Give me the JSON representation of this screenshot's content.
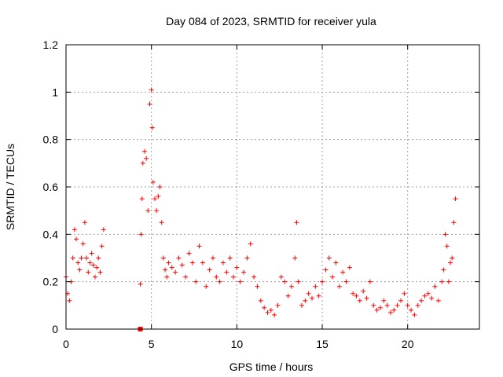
{
  "chart_data": {
    "type": "scatter",
    "title": "Day 084 of 2023, SRMTID for receiver yula",
    "xlabel": "GPS time / hours",
    "ylabel": "SRMTID / TECUs",
    "xlim": [
      0,
      24.2
    ],
    "ylim": [
      0,
      1.2
    ],
    "xticks": [
      0,
      5,
      10,
      15,
      20
    ],
    "xtick_labels": [
      "0",
      "5",
      "10",
      "15",
      "20"
    ],
    "yticks": [
      0,
      0.2,
      0.4,
      0.6,
      0.8,
      1.0,
      1.2
    ],
    "ytick_labels": [
      "0",
      "0.2",
      "0.4",
      "0.6",
      "0.8",
      "1",
      "1.2"
    ],
    "grid": true,
    "marker": "+",
    "color": "#ff0000",
    "series": [
      {
        "name": "SRMTID",
        "x": [
          0.0,
          0.1,
          0.2,
          0.3,
          0.4,
          0.5,
          0.6,
          0.7,
          0.8,
          0.9,
          1.0,
          1.1,
          1.2,
          1.3,
          1.4,
          1.5,
          1.6,
          1.7,
          1.8,
          1.9,
          2.0,
          2.1,
          2.2,
          4.35,
          4.4,
          4.45,
          4.5,
          4.6,
          4.7,
          4.8,
          4.9,
          5.0,
          5.05,
          5.1,
          5.2,
          5.3,
          5.4,
          5.5,
          5.6,
          5.7,
          5.8,
          5.9,
          6.0,
          6.2,
          6.4,
          6.6,
          6.8,
          7.0,
          7.2,
          7.4,
          7.6,
          7.8,
          8.0,
          8.2,
          8.4,
          8.6,
          8.8,
          9.0,
          9.2,
          9.4,
          9.6,
          9.8,
          10.0,
          10.2,
          10.4,
          10.6,
          10.8,
          11.0,
          11.2,
          11.4,
          11.6,
          11.8,
          12.0,
          12.2,
          12.4,
          12.6,
          12.8,
          13.0,
          13.2,
          13.4,
          13.5,
          13.6,
          13.8,
          14.0,
          14.2,
          14.4,
          14.6,
          14.8,
          15.0,
          15.2,
          15.4,
          15.6,
          15.8,
          16.0,
          16.2,
          16.4,
          16.6,
          16.8,
          17.0,
          17.2,
          17.4,
          17.6,
          17.8,
          18.0,
          18.2,
          18.4,
          18.6,
          18.8,
          19.0,
          19.2,
          19.4,
          19.6,
          19.8,
          20.0,
          20.2,
          20.4,
          20.6,
          20.8,
          21.0,
          21.2,
          21.4,
          21.6,
          21.8,
          22.0,
          22.1,
          22.2,
          22.3,
          22.4,
          22.5,
          22.6,
          22.7,
          22.8
        ],
        "y": [
          0.22,
          0.15,
          0.12,
          0.2,
          0.3,
          0.42,
          0.38,
          0.28,
          0.25,
          0.3,
          0.36,
          0.45,
          0.3,
          0.24,
          0.28,
          0.32,
          0.27,
          0.22,
          0.26,
          0.3,
          0.24,
          0.35,
          0.42,
          0.19,
          0.4,
          0.55,
          0.7,
          0.75,
          0.72,
          0.5,
          0.95,
          1.01,
          0.85,
          0.62,
          0.55,
          0.5,
          0.56,
          0.6,
          0.45,
          0.3,
          0.25,
          0.22,
          0.28,
          0.26,
          0.24,
          0.3,
          0.27,
          0.22,
          0.32,
          0.28,
          0.2,
          0.35,
          0.28,
          0.18,
          0.25,
          0.3,
          0.22,
          0.2,
          0.28,
          0.24,
          0.3,
          0.22,
          0.26,
          0.2,
          0.24,
          0.3,
          0.36,
          0.22,
          0.18,
          0.12,
          0.09,
          0.07,
          0.08,
          0.06,
          0.1,
          0.22,
          0.2,
          0.14,
          0.18,
          0.3,
          0.45,
          0.2,
          0.1,
          0.12,
          0.15,
          0.13,
          0.18,
          0.14,
          0.2,
          0.25,
          0.3,
          0.22,
          0.28,
          0.18,
          0.24,
          0.2,
          0.26,
          0.15,
          0.14,
          0.12,
          0.16,
          0.13,
          0.2,
          0.1,
          0.08,
          0.09,
          0.12,
          0.1,
          0.07,
          0.08,
          0.1,
          0.12,
          0.15,
          0.1,
          0.08,
          0.06,
          0.1,
          0.12,
          0.14,
          0.15,
          0.13,
          0.18,
          0.12,
          0.2,
          0.25,
          0.4,
          0.35,
          0.2,
          0.28,
          0.3,
          0.45,
          0.55
        ]
      }
    ],
    "outlier_points": [
      {
        "x": 4.35,
        "y": 0.0
      }
    ]
  }
}
